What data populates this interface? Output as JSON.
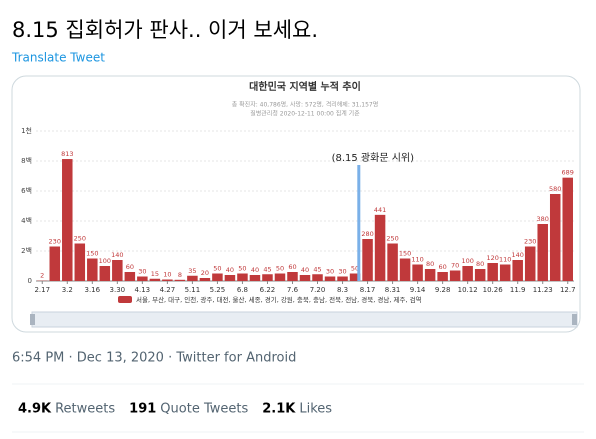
{
  "tweet": {
    "text": "8.15 집회허가 판사.. 이거 보세요.",
    "translate": "Translate Tweet",
    "meta": "6:54 PM · Dec 13, 2020 · Twitter for Android",
    "stats": [
      {
        "count": "4.9K",
        "label": "Retweets"
      },
      {
        "count": "191",
        "label": "Quote Tweets"
      },
      {
        "count": "2.1K",
        "label": "Likes"
      }
    ]
  },
  "chart_data": {
    "type": "bar",
    "title": "대한민국 지역별 누적 추이",
    "subtitle": [
      "총 확진자: 40,786명, 사망: 572명, 격리해제: 31,157명",
      "질병관리청 2020-12-11 00:00 집계 기준"
    ],
    "annotation": "(8.15 광화문 시위)",
    "categories": [
      "2.17",
      null,
      "3.2",
      null,
      "3.16",
      null,
      "3.30",
      null,
      "4.13",
      null,
      "4.27",
      null,
      "5.11",
      null,
      "5.25",
      null,
      "6.8",
      null,
      "6.22",
      null,
      "7.6",
      null,
      "7.20",
      null,
      "8.3",
      null,
      "8.17",
      null,
      "8.31",
      null,
      "9.14",
      null,
      "9.28",
      null,
      "10.12",
      null,
      "10.26",
      null,
      "11.9",
      null,
      "11.23",
      null,
      "12.7"
    ],
    "series": [
      {
        "name": "서울, 부산, 대구, 인천, 광주, 대전, 울산, 세종, 경기, 강원, 충북, 충남, 전북, 전남, 경북, 경남, 제주, 검역",
        "color": "#c0393b",
        "values": [
          2,
          230,
          813,
          250,
          150,
          100,
          140,
          60,
          30,
          15,
          10,
          8,
          35,
          20,
          50,
          40,
          50,
          40,
          45,
          50,
          60,
          40,
          45,
          30,
          30,
          50,
          280,
          441,
          250,
          150,
          110,
          80,
          60,
          70,
          100,
          80,
          120,
          110,
          140,
          230,
          380,
          580,
          689
        ]
      }
    ],
    "ylim": [
      0,
      1000
    ],
    "yticks": [
      0,
      {
        "value": 200,
        "label": "2백"
      },
      {
        "value": 400,
        "label": "4백"
      },
      {
        "value": 600,
        "label": "6백"
      },
      {
        "value": 800,
        "label": "8백"
      },
      {
        "value": 1000,
        "label": "1천"
      }
    ],
    "grid": true
  }
}
